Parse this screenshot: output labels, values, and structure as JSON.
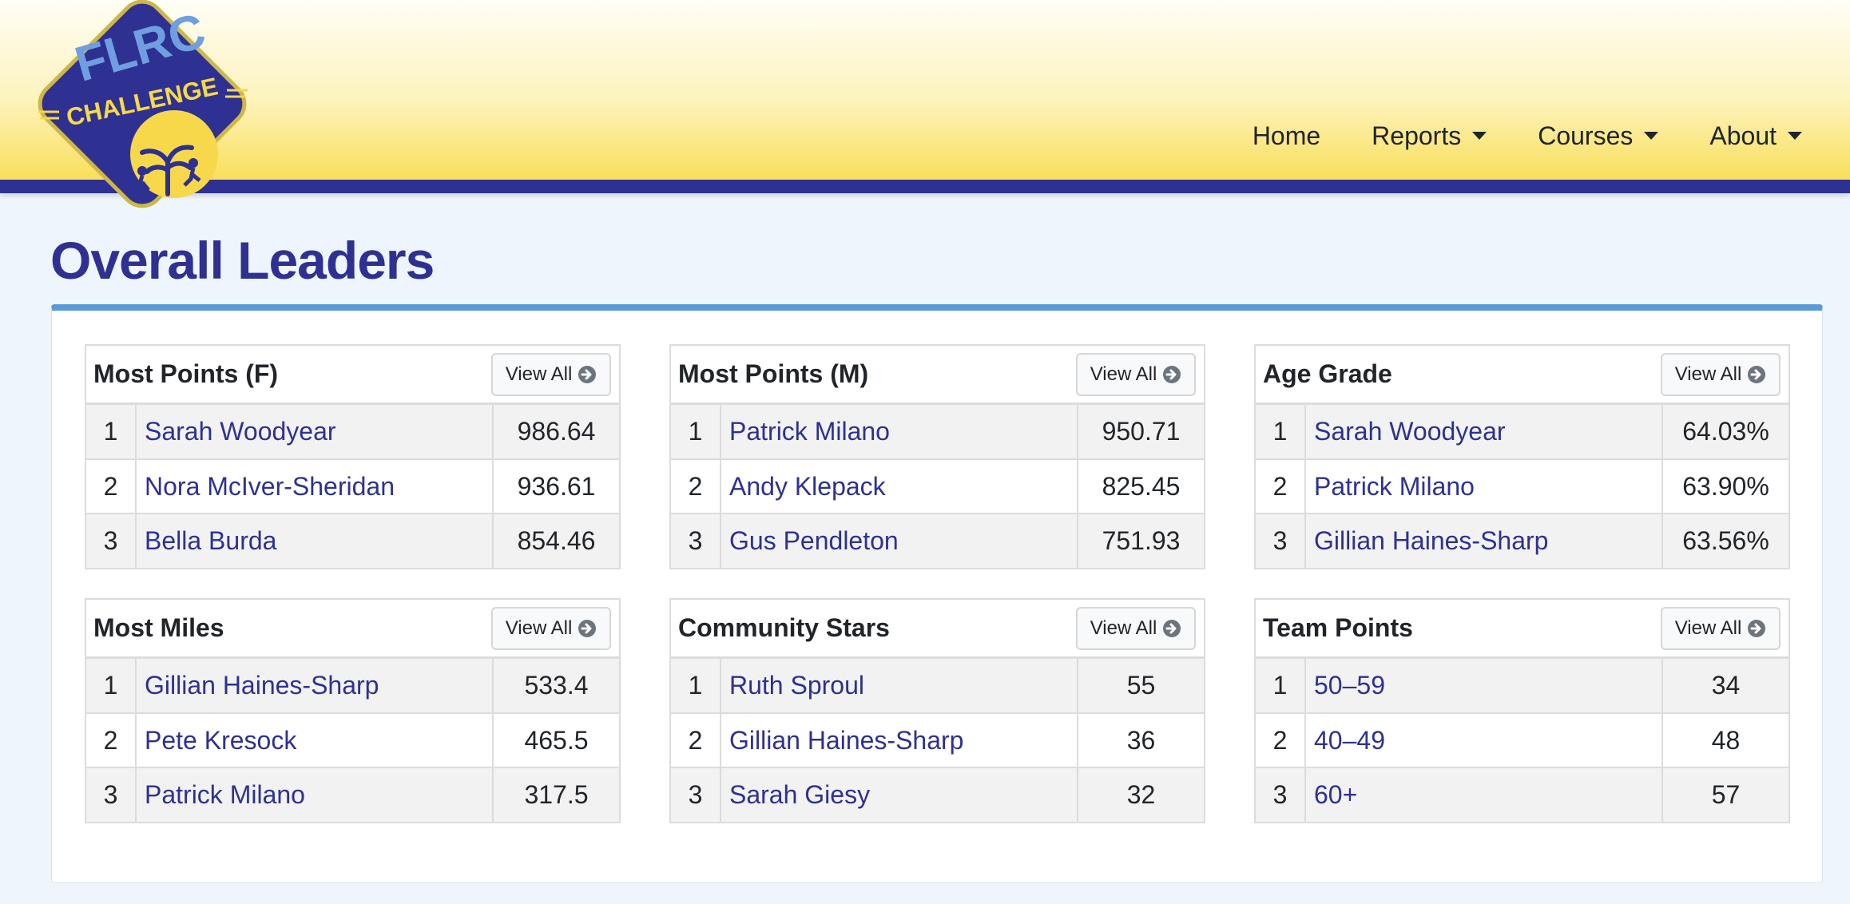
{
  "logo": {
    "line1": "FLRC",
    "line2": "CHALLENGE"
  },
  "nav": [
    {
      "label": "Home",
      "dropdown": false
    },
    {
      "label": "Reports",
      "dropdown": true
    },
    {
      "label": "Courses",
      "dropdown": true
    },
    {
      "label": "About",
      "dropdown": true
    }
  ],
  "page_title": "Overall Leaders",
  "view_all_label": "View All",
  "colors": {
    "brand_navy": "#2e3191",
    "panel_accent": "#5b9bd5",
    "header_yellow": "#f9df5a"
  },
  "cards": [
    {
      "title": "Most Points (F)",
      "rows": [
        {
          "rank": "1",
          "name": "Sarah Woodyear",
          "value": "986.64"
        },
        {
          "rank": "2",
          "name": "Nora McIver-Sheridan",
          "value": "936.61"
        },
        {
          "rank": "3",
          "name": "Bella Burda",
          "value": "854.46"
        }
      ]
    },
    {
      "title": "Most Points (M)",
      "rows": [
        {
          "rank": "1",
          "name": "Patrick Milano",
          "value": "950.71"
        },
        {
          "rank": "2",
          "name": "Andy Klepack",
          "value": "825.45"
        },
        {
          "rank": "3",
          "name": "Gus Pendleton",
          "value": "751.93"
        }
      ]
    },
    {
      "title": "Age Grade",
      "rows": [
        {
          "rank": "1",
          "name": "Sarah Woodyear",
          "value": "64.03%"
        },
        {
          "rank": "2",
          "name": "Patrick Milano",
          "value": "63.90%"
        },
        {
          "rank": "3",
          "name": "Gillian Haines-Sharp",
          "value": "63.56%"
        }
      ]
    },
    {
      "title": "Most Miles",
      "rows": [
        {
          "rank": "1",
          "name": "Gillian Haines-Sharp",
          "value": "533.4"
        },
        {
          "rank": "2",
          "name": "Pete Kresock",
          "value": "465.5"
        },
        {
          "rank": "3",
          "name": "Patrick Milano",
          "value": "317.5"
        }
      ]
    },
    {
      "title": "Community Stars",
      "rows": [
        {
          "rank": "1",
          "name": "Ruth Sproul",
          "value": "55"
        },
        {
          "rank": "2",
          "name": "Gillian Haines-Sharp",
          "value": "36"
        },
        {
          "rank": "3",
          "name": "Sarah Giesy",
          "value": "32"
        }
      ]
    },
    {
      "title": "Team Points",
      "rows": [
        {
          "rank": "1",
          "name": "50–59",
          "value": "34"
        },
        {
          "rank": "2",
          "name": "40–49",
          "value": "48"
        },
        {
          "rank": "3",
          "name": "60+",
          "value": "57"
        }
      ]
    }
  ]
}
